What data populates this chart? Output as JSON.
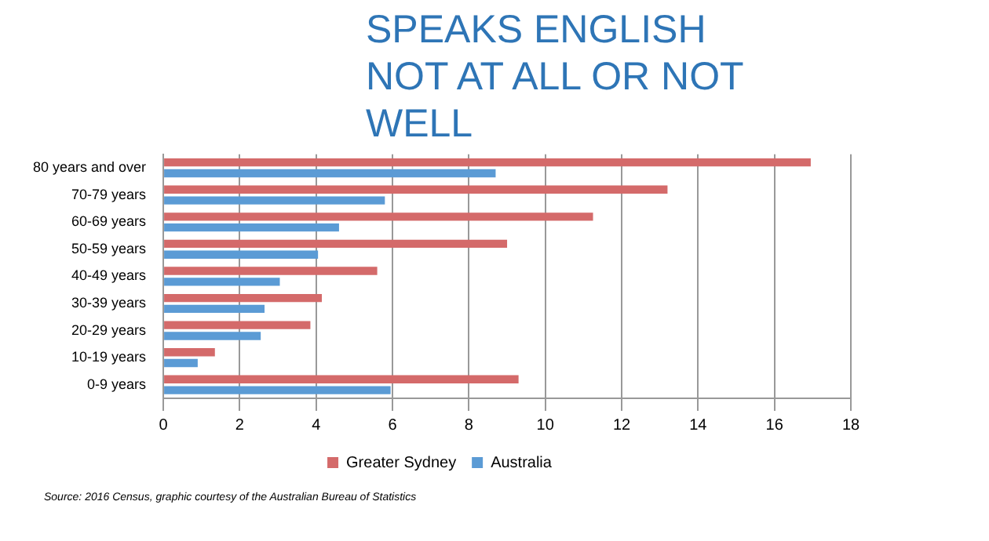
{
  "chart_data": {
    "type": "bar",
    "orientation": "horizontal",
    "title": "SPEAKS ENGLISH NOT AT ALL OR NOT WELL",
    "categories": [
      "80 years and over",
      "70-79 years",
      "60-69 years",
      "50-59 years",
      "40-49 years",
      "30-39 years",
      "20-29 years",
      "10-19 years",
      "0-9 years"
    ],
    "series": [
      {
        "name": "Greater Sydney",
        "color": "#d46a6a",
        "values": [
          16.95,
          13.2,
          11.25,
          9.0,
          5.6,
          4.15,
          3.85,
          1.35,
          9.3
        ]
      },
      {
        "name": "Australia",
        "color": "#5b9bd5",
        "values": [
          8.7,
          5.8,
          4.6,
          4.05,
          3.05,
          2.65,
          2.55,
          0.9,
          5.95
        ]
      }
    ],
    "xlim": [
      0,
      18
    ],
    "xticks": [
      0,
      2,
      4,
      6,
      8,
      10,
      12,
      14,
      16,
      18
    ],
    "grid": "x",
    "legend": "bottom",
    "annotations": [
      "Source: 2016 Census, graphic courtesy of the Australian Bureau of Statistics"
    ]
  }
}
